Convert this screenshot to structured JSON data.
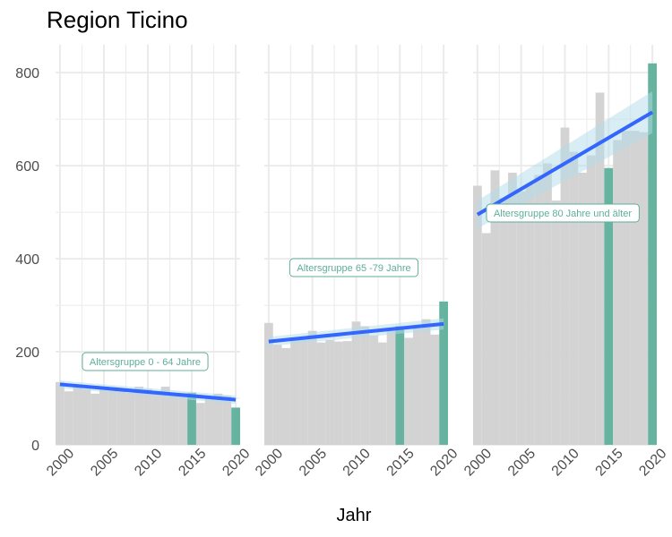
{
  "chart_data": {
    "type": "bar",
    "title": "Region Ticino",
    "xlabel": "Jahr",
    "ylabel": "",
    "ylim": [
      0,
      860
    ],
    "xlim": [
      1999.5,
      2020.5
    ],
    "y_ticks": [
      0,
      200,
      400,
      600,
      800
    ],
    "y_tick_labels": [
      "0",
      "200",
      "400",
      "600",
      "800"
    ],
    "x_ticks": [
      2000,
      2005,
      2010,
      2015,
      2020
    ],
    "x_tick_labels": [
      "2000",
      "2005",
      "2010",
      "2015",
      "2020"
    ],
    "grid": true,
    "colors": {
      "bar": "#d3d3d3",
      "highlight": "#66b3a0",
      "trend": "#3366ff",
      "ribbon": "#b3dbea",
      "label": "#5fae9b",
      "grid": "#ebebeb"
    },
    "highlight_years": [
      2015,
      2020
    ],
    "facets": [
      {
        "label": "Altersgruppe 0 - 64 Jahre",
        "years": [
          2000,
          2001,
          2002,
          2003,
          2004,
          2005,
          2006,
          2007,
          2008,
          2009,
          2010,
          2011,
          2012,
          2013,
          2014,
          2015,
          2016,
          2017,
          2018,
          2019,
          2020
        ],
        "values": [
          135,
          115,
          130,
          120,
          110,
          125,
          120,
          115,
          112,
          125,
          120,
          110,
          125,
          105,
          112,
          112,
          90,
          100,
          110,
          105,
          80
        ],
        "trend": [
          130,
          97
        ],
        "ribbon": [
          [
            138,
            122
          ],
          [
            106,
            88
          ]
        ]
      },
      {
        "label": "Altersgruppe 65 -79 Jahre",
        "years": [
          2000,
          2001,
          2002,
          2003,
          2004,
          2005,
          2006,
          2007,
          2008,
          2009,
          2010,
          2011,
          2012,
          2013,
          2014,
          2015,
          2016,
          2017,
          2018,
          2019,
          2020
        ],
        "values": [
          262,
          215,
          208,
          225,
          230,
          245,
          220,
          225,
          222,
          223,
          265,
          255,
          235,
          220,
          250,
          255,
          230,
          250,
          270,
          237,
          308
        ],
        "trend": [
          222,
          260
        ],
        "ribbon": [
          [
            232,
            212
          ],
          [
            272,
            248
          ]
        ]
      },
      {
        "label": "Altersgruppe 80 Jahre und älter",
        "years": [
          2000,
          2001,
          2002,
          2003,
          2004,
          2005,
          2006,
          2007,
          2008,
          2009,
          2010,
          2011,
          2012,
          2013,
          2014,
          2015,
          2016,
          2017,
          2018,
          2019,
          2020
        ],
        "values": [
          557,
          455,
          590,
          530,
          585,
          545,
          560,
          580,
          605,
          525,
          682,
          630,
          585,
          622,
          757,
          595,
          655,
          675,
          675,
          672,
          820
        ],
        "trend": [
          495,
          715
        ],
        "ribbon": [
          [
            525,
            465
          ],
          [
            760,
            670
          ]
        ]
      }
    ]
  }
}
